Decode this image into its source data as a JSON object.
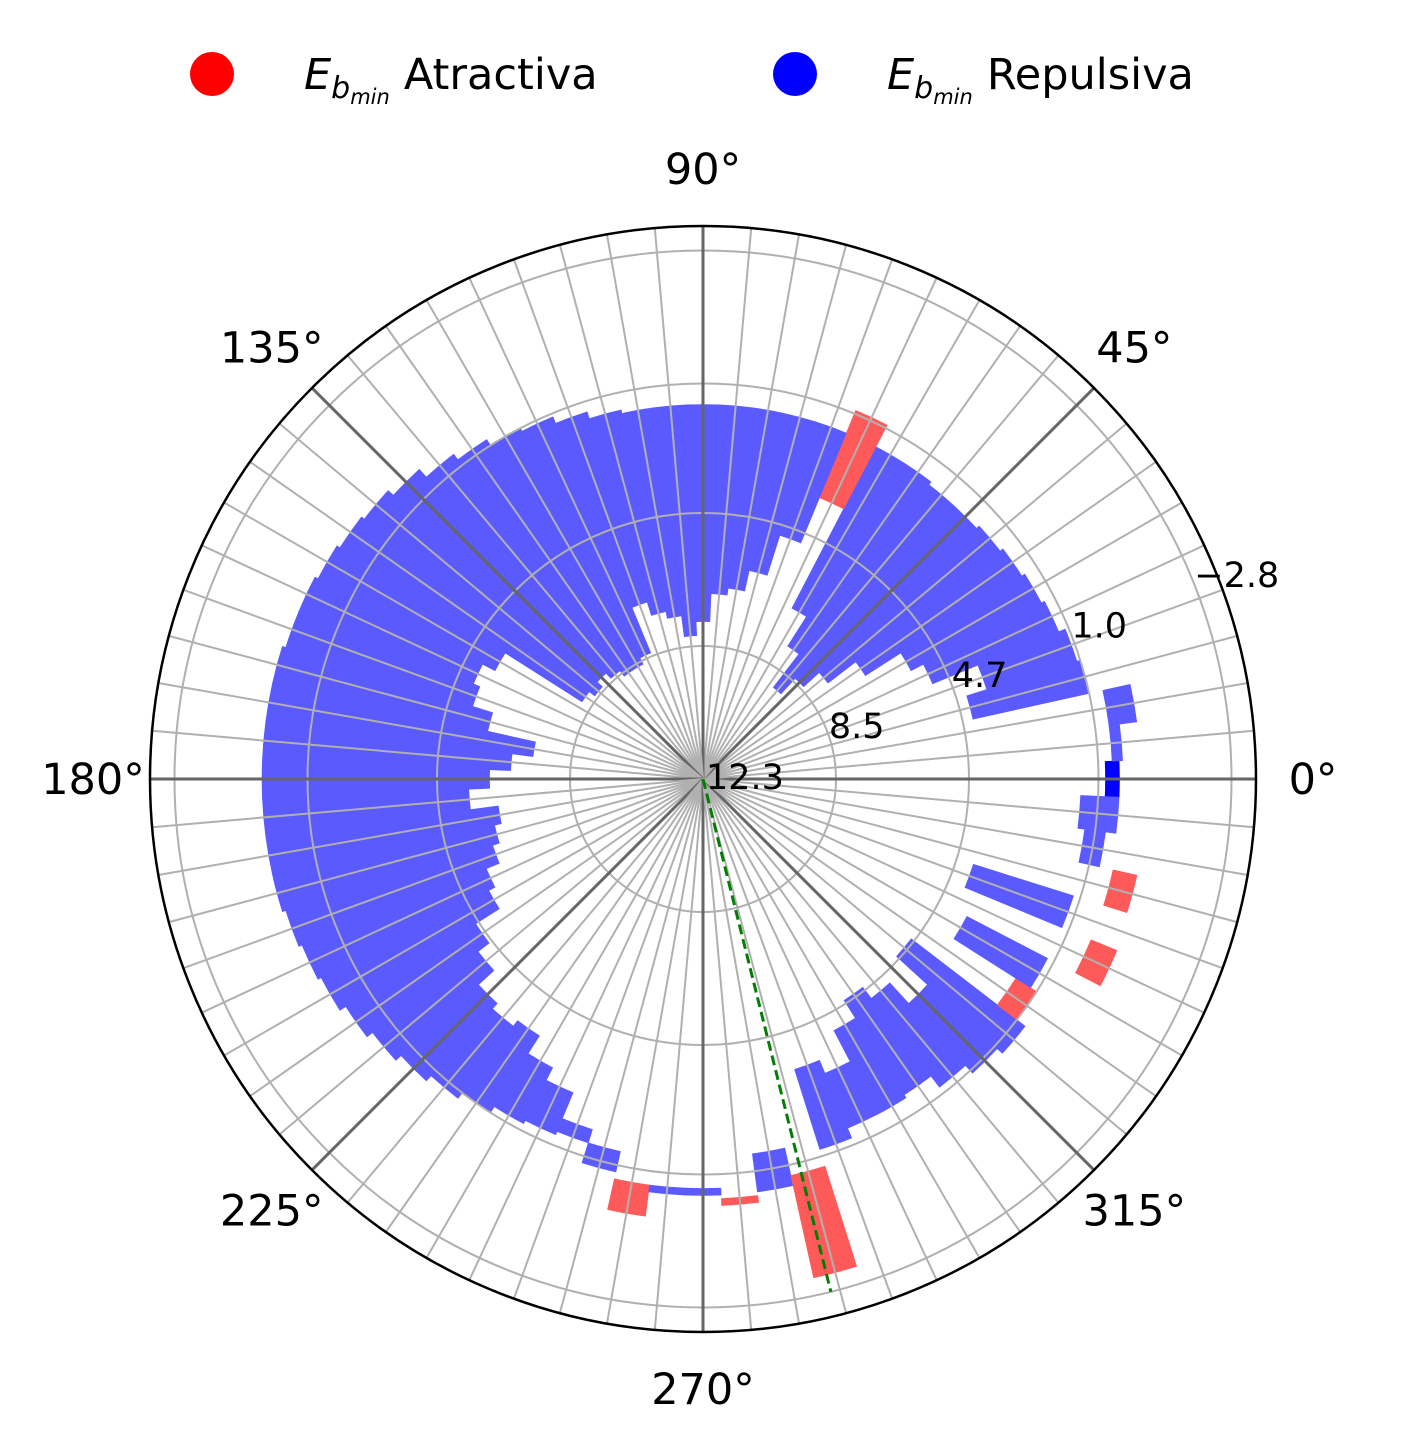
{
  "chart_data": {
    "type": "polar-bar",
    "title": "",
    "legend": {
      "placement": "top-center",
      "entries": [
        {
          "symbol": "E",
          "subscript": "b",
          "subsubscript": "min",
          "label": "Atractiva",
          "color": "#ff0000"
        },
        {
          "symbol": "E",
          "subscript": "b",
          "subsubscript": "min",
          "label": "Repulsiva",
          "color": "#0000ff"
        }
      ]
    },
    "angle_ticks": [
      {
        "deg": 0,
        "label": "0°"
      },
      {
        "deg": 45,
        "label": "45°"
      },
      {
        "deg": 90,
        "label": "90°"
      },
      {
        "deg": 135,
        "label": "135°"
      },
      {
        "deg": 180,
        "label": "180°"
      },
      {
        "deg": 225,
        "label": "225°"
      },
      {
        "deg": 270,
        "label": "270°"
      },
      {
        "deg": 315,
        "label": "315°"
      }
    ],
    "radial_axis": {
      "inverted": true,
      "center_value": 12.3,
      "edge_value": -3.5,
      "ticks": [
        {
          "value": 12.3,
          "label": "12.3"
        },
        {
          "value": 8.5,
          "label": "8.5"
        },
        {
          "value": 4.7,
          "label": "4.7"
        },
        {
          "value": 1.0,
          "label": "1.0"
        },
        {
          "value": -2.8,
          "label": "−2.8"
        }
      ]
    },
    "grid": true,
    "bin_width_deg": 5,
    "attractive_color": "#ff5a5a",
    "repulsive_color": "#5a5aff",
    "highlight_color": "#0000ff",
    "bins": [
      {
        "angle": 0,
        "base": 0.8,
        "top": 0.4,
        "kind": "repulsive",
        "highlight": true
      },
      {
        "angle": 5,
        "base": 0.6,
        "top": 0.3,
        "kind": "repulsive"
      },
      {
        "angle": 10,
        "base": 0.6,
        "top": -0.2,
        "kind": "repulsive"
      },
      {
        "angle": 15,
        "base": 4.4,
        "top": 1.0,
        "kind": "repulsive"
      },
      {
        "angle": 20,
        "base": 3.8,
        "top": 1.1,
        "kind": "repulsive"
      },
      {
        "angle": 25,
        "base": 5.2,
        "top": 1.3,
        "kind": "repulsive"
      },
      {
        "angle": 30,
        "base": 5.6,
        "top": 1.4,
        "kind": "repulsive"
      },
      {
        "angle": 35,
        "base": 6.8,
        "top": 1.5,
        "kind": "repulsive"
      },
      {
        "angle": 40,
        "base": 7.8,
        "top": 1.6,
        "kind": "repulsive"
      },
      {
        "angle": 45,
        "base": 8.4,
        "top": 1.7,
        "kind": "repulsive"
      },
      {
        "angle": 50,
        "base": 9.0,
        "top": 1.7,
        "kind": "repulsive"
      },
      {
        "angle": 55,
        "base": 7.8,
        "top": 1.6,
        "kind": "repulsive"
      },
      {
        "angle": 60,
        "base": 6.8,
        "top": 1.6,
        "kind": "repulsive"
      },
      {
        "angle": 65,
        "base": 3.6,
        "top": 0.9,
        "kind": "attractive"
      },
      {
        "angle": 70,
        "base": 5.0,
        "top": 1.6,
        "kind": "repulsive"
      },
      {
        "angle": 75,
        "base": 6.2,
        "top": 1.6,
        "kind": "repulsive"
      },
      {
        "angle": 80,
        "base": 6.8,
        "top": 1.6,
        "kind": "repulsive"
      },
      {
        "angle": 85,
        "base": 7.0,
        "top": 1.6,
        "kind": "repulsive"
      },
      {
        "angle": 90,
        "base": 7.8,
        "top": 1.6,
        "kind": "repulsive"
      },
      {
        "angle": 95,
        "base": 8.2,
        "top": 1.6,
        "kind": "repulsive"
      },
      {
        "angle": 100,
        "base": 7.6,
        "top": 1.6,
        "kind": "repulsive"
      },
      {
        "angle": 105,
        "base": 7.4,
        "top": 1.5,
        "kind": "repulsive"
      },
      {
        "angle": 110,
        "base": 7.0,
        "top": 1.3,
        "kind": "repulsive"
      },
      {
        "angle": 115,
        "base": 8.4,
        "top": 1.1,
        "kind": "repulsive"
      },
      {
        "angle": 120,
        "base": 8.6,
        "top": 1.0,
        "kind": "repulsive"
      },
      {
        "angle": 125,
        "base": 8.6,
        "top": 0.8,
        "kind": "repulsive"
      },
      {
        "angle": 130,
        "base": 8.4,
        "top": 0.6,
        "kind": "repulsive"
      },
      {
        "angle": 135,
        "base": 8.2,
        "top": 0.3,
        "kind": "repulsive"
      },
      {
        "angle": 140,
        "base": 8.4,
        "top": 0.1,
        "kind": "repulsive"
      },
      {
        "angle": 145,
        "base": 8.2,
        "top": 0.0,
        "kind": "repulsive"
      },
      {
        "angle": 150,
        "base": 5.6,
        "top": -0.1,
        "kind": "repulsive"
      },
      {
        "angle": 155,
        "base": 5.2,
        "top": -0.2,
        "kind": "repulsive"
      },
      {
        "angle": 160,
        "base": 5.4,
        "top": -0.2,
        "kind": "repulsive"
      },
      {
        "angle": 165,
        "base": 6.0,
        "top": -0.3,
        "kind": "repulsive"
      },
      {
        "angle": 170,
        "base": 7.4,
        "top": -0.3,
        "kind": "repulsive"
      },
      {
        "angle": 175,
        "base": 6.8,
        "top": -0.3,
        "kind": "repulsive"
      },
      {
        "angle": 180,
        "base": 6.2,
        "top": -0.3,
        "kind": "repulsive"
      },
      {
        "angle": 185,
        "base": 5.6,
        "top": -0.3,
        "kind": "repulsive"
      },
      {
        "angle": 190,
        "base": 6.4,
        "top": -0.3,
        "kind": "repulsive"
      },
      {
        "angle": 195,
        "base": 6.2,
        "top": -0.3,
        "kind": "repulsive"
      },
      {
        "angle": 200,
        "base": 6.0,
        "top": -0.2,
        "kind": "repulsive"
      },
      {
        "angle": 205,
        "base": 5.6,
        "top": -0.1,
        "kind": "repulsive"
      },
      {
        "angle": 210,
        "base": 5.4,
        "top": 0.0,
        "kind": "repulsive"
      },
      {
        "angle": 215,
        "base": 4.6,
        "top": 0.2,
        "kind": "repulsive"
      },
      {
        "angle": 220,
        "base": 4.2,
        "top": 0.4,
        "kind": "repulsive"
      },
      {
        "angle": 225,
        "base": 3.6,
        "top": 0.6,
        "kind": "repulsive"
      },
      {
        "angle": 230,
        "base": 3.4,
        "top": 0.8,
        "kind": "repulsive"
      },
      {
        "angle": 235,
        "base": 3.6,
        "top": 1.0,
        "kind": "repulsive"
      },
      {
        "angle": 240,
        "base": 3.0,
        "top": 1.2,
        "kind": "repulsive"
      },
      {
        "angle": 245,
        "base": 2.6,
        "top": 1.3,
        "kind": "repulsive"
      },
      {
        "angle": 250,
        "base": 1.8,
        "top": 1.4,
        "kind": "repulsive"
      },
      {
        "angle": 255,
        "base": 1.4,
        "top": 0.8,
        "kind": "repulsive"
      },
      {
        "angle": 260,
        "base": 0.6,
        "top": -0.3,
        "kind": "attractive"
      },
      {
        "angle": 265,
        "base": 0.6,
        "top": 0.4,
        "kind": "repulsive"
      },
      {
        "angle": 270,
        "base": 0.6,
        "top": 0.4,
        "kind": "repulsive"
      },
      {
        "angle": 275,
        "base": 0.3,
        "top": 0.1,
        "kind": "attractive"
      },
      {
        "angle": 280,
        "base": 1.5,
        "top": 0.4,
        "kind": "repulsive"
      },
      {
        "angle": 285,
        "base": 0.7,
        "top": -2.3,
        "kind": "attractive"
      },
      {
        "angle": 290,
        "base": 3.6,
        "top": 1.2,
        "kind": "repulsive"
      },
      {
        "angle": 295,
        "base": 3.2,
        "top": 1.5,
        "kind": "repulsive"
      },
      {
        "angle": 300,
        "base": 4.2,
        "top": 1.5,
        "kind": "repulsive"
      },
      {
        "angle": 305,
        "base": 4.8,
        "top": 1.6,
        "kind": "repulsive"
      },
      {
        "angle": 310,
        "base": 4.4,
        "top": 1.2,
        "kind": "repulsive"
      },
      {
        "angle": 315,
        "base": 3.6,
        "top": 0.9,
        "kind": "repulsive"
      },
      {
        "angle": 320,
        "base": 4.8,
        "top": 0.7,
        "kind": "repulsive"
      },
      {
        "angle": 325,
        "base": 1.7,
        "top": 1.0,
        "kind": "attractive"
      },
      {
        "angle": 330,
        "base": 3.8,
        "top": 1.2,
        "kind": "repulsive"
      },
      {
        "angle": 335,
        "base": 0.3,
        "top": -0.5,
        "kind": "attractive"
      },
      {
        "angle": 340,
        "base": 4.2,
        "top": 1.2,
        "kind": "repulsive"
      },
      {
        "angle": 345,
        "base": 0.3,
        "top": -0.4,
        "kind": "attractive"
      },
      {
        "angle": 350,
        "base": 1.3,
        "top": 0.7,
        "kind": "repulsive"
      },
      {
        "angle": 355,
        "base": 1.5,
        "top": 0.4,
        "kind": "repulsive"
      }
    ],
    "guide_line": {
      "angle": 284,
      "from_value": 12.3,
      "to_value": -2.8,
      "color": "#008000",
      "style": "dashed"
    },
    "colors": {
      "axis": "#000000",
      "grid": "#b0b0b0",
      "major_grid": "#666666"
    }
  }
}
